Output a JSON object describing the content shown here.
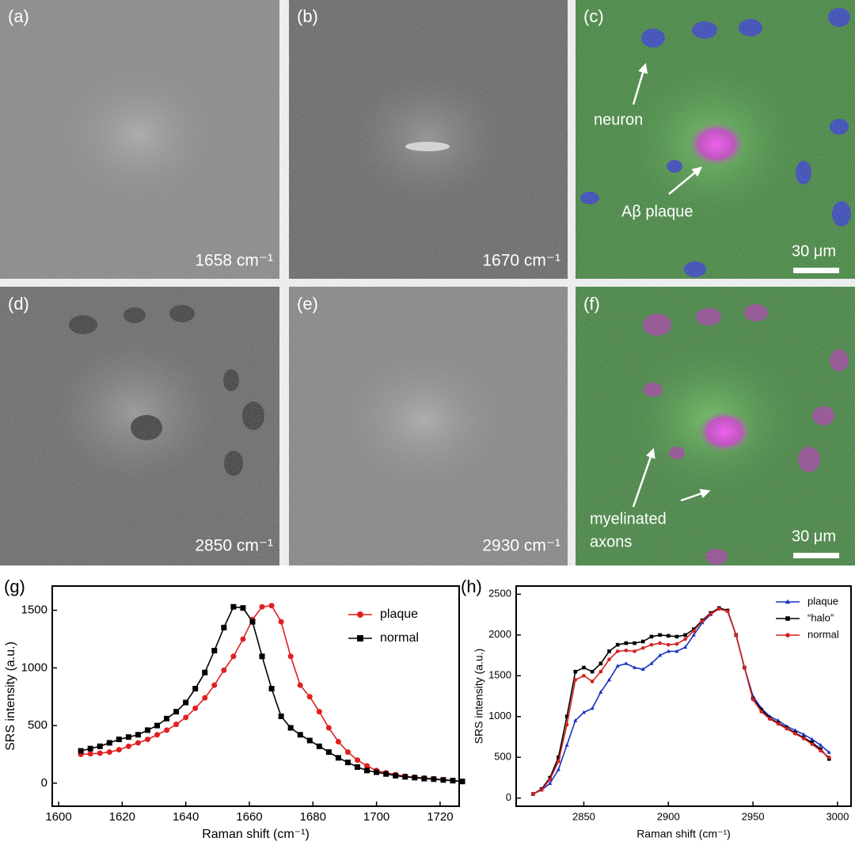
{
  "panels": [
    {
      "label": "(a)",
      "wavenumber": "1658 cm⁻¹"
    },
    {
      "label": "(b)",
      "wavenumber": "1670 cm⁻¹"
    },
    {
      "label": "(c)",
      "annotations": [
        "neuron",
        "Aβ plaque"
      ],
      "scale_bar": "30 μm"
    },
    {
      "label": "(d)",
      "wavenumber": "2850 cm⁻¹"
    },
    {
      "label": "(e)",
      "wavenumber": "2930 cm⁻¹"
    },
    {
      "label": "(f)",
      "annotations": [
        "myelinated",
        "axons"
      ],
      "scale_bar": "30 μm"
    }
  ],
  "chart_data": [
    {
      "type": "line",
      "panel_label": "(g)",
      "x_label": "Raman shift (cm⁻¹)",
      "y_label": "SRS intensity (a.u.)",
      "xlim": [
        1598,
        1726
      ],
      "ylim": [
        -200,
        1710
      ],
      "xticks": [
        1600,
        1620,
        1640,
        1660,
        1680,
        1700,
        1720
      ],
      "yticks": [
        0,
        500,
        1000,
        1500
      ],
      "legend": "upper right",
      "x": [
        1607,
        1610,
        1613,
        1616,
        1619,
        1622,
        1625,
        1628,
        1631,
        1634,
        1637,
        1640,
        1643,
        1646,
        1649,
        1652,
        1655,
        1658,
        1661,
        1664,
        1667,
        1670,
        1673,
        1676,
        1679,
        1682,
        1685,
        1688,
        1691,
        1694,
        1697,
        1700,
        1703,
        1706,
        1709,
        1712,
        1715,
        1718,
        1721,
        1724,
        1727
      ],
      "series": [
        {
          "name": "plaque",
          "color": "#e02020",
          "marker": "circle",
          "values": [
            250,
            255,
            260,
            270,
            290,
            320,
            350,
            380,
            420,
            460,
            510,
            570,
            650,
            740,
            850,
            980,
            1100,
            1250,
            1420,
            1530,
            1540,
            1400,
            1100,
            850,
            750,
            620,
            480,
            360,
            270,
            200,
            150,
            110,
            90,
            75,
            60,
            52,
            45,
            38,
            30,
            24,
            15
          ]
        },
        {
          "name": "normal",
          "color": "#000000",
          "marker": "square",
          "values": [
            280,
            300,
            320,
            350,
            380,
            400,
            420,
            460,
            500,
            560,
            620,
            700,
            820,
            960,
            1150,
            1350,
            1530,
            1520,
            1400,
            1100,
            820,
            580,
            480,
            420,
            370,
            320,
            270,
            220,
            180,
            140,
            110,
            95,
            80,
            65,
            55,
            48,
            40,
            35,
            28,
            22,
            15
          ]
        }
      ]
    },
    {
      "type": "line",
      "panel_label": "(h)",
      "x_label": "Raman shift (cm⁻¹)",
      "y_label": "SRS intensity (a.u.)",
      "xlim": [
        2810,
        3008
      ],
      "ylim": [
        -100,
        2600
      ],
      "xticks": [
        2850,
        2900,
        2950,
        3000
      ],
      "yticks": [
        0,
        500,
        1000,
        1500,
        2000,
        2500
      ],
      "legend": "upper right",
      "x": [
        2820,
        2825,
        2830,
        2835,
        2840,
        2845,
        2850,
        2855,
        2860,
        2865,
        2870,
        2875,
        2880,
        2885,
        2890,
        2895,
        2900,
        2905,
        2910,
        2915,
        2920,
        2925,
        2930,
        2935,
        2940,
        2945,
        2950,
        2955,
        2960,
        2965,
        2970,
        2975,
        2980,
        2985,
        2990,
        2995
      ],
      "series": [
        {
          "name": "plaque",
          "color": "#1a2fbf",
          "marker": "triangle",
          "values": [
            50,
            100,
            180,
            350,
            650,
            950,
            1050,
            1100,
            1300,
            1450,
            1620,
            1650,
            1600,
            1580,
            1650,
            1750,
            1800,
            1800,
            1850,
            2000,
            2150,
            2250,
            2330,
            2300,
            2000,
            1600,
            1250,
            1100,
            1000,
            950,
            880,
            830,
            780,
            720,
            650,
            560
          ]
        },
        {
          "name": "“halo”",
          "color": "#000000",
          "marker": "square",
          "values": [
            50,
            110,
            250,
            500,
            1000,
            1550,
            1600,
            1550,
            1650,
            1800,
            1880,
            1900,
            1900,
            1920,
            1980,
            2000,
            1990,
            1980,
            2000,
            2070,
            2180,
            2270,
            2330,
            2300,
            2000,
            1600,
            1220,
            1080,
            980,
            920,
            860,
            800,
            740,
            680,
            600,
            480
          ]
        },
        {
          "name": "normal",
          "color": "#d42020",
          "marker": "circle",
          "values": [
            50,
            100,
            230,
            450,
            900,
            1450,
            1500,
            1430,
            1550,
            1700,
            1800,
            1810,
            1800,
            1840,
            1880,
            1900,
            1880,
            1890,
            1950,
            2050,
            2170,
            2260,
            2320,
            2290,
            2000,
            1600,
            1210,
            1060,
            970,
            910,
            850,
            790,
            730,
            660,
            580,
            500
          ]
        }
      ]
    }
  ]
}
